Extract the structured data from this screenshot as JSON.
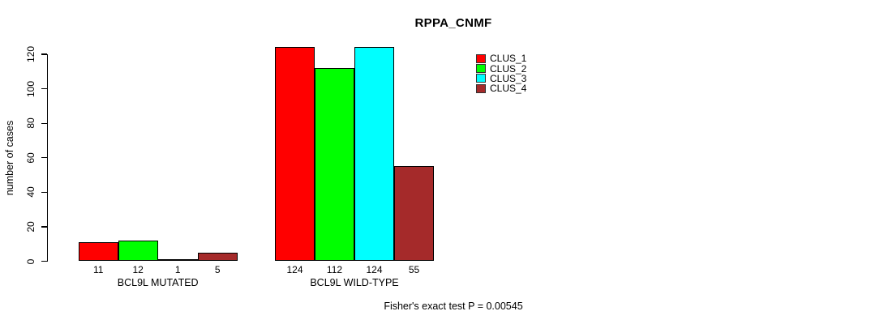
{
  "chart_data": {
    "type": "bar",
    "title": "RPPA_CNMF",
    "ylabel": "number of cases",
    "xlabel": "",
    "ylim": [
      0,
      120
    ],
    "yticks": [
      0,
      20,
      40,
      60,
      80,
      100,
      120
    ],
    "grid": false,
    "legend_position": "top-right",
    "categories": [
      "BCL9L MUTATED",
      "BCL9L WILD-TYPE"
    ],
    "series": [
      {
        "name": "CLUS_1",
        "color": "#FF0000",
        "values": [
          11,
          124
        ]
      },
      {
        "name": "CLUS_2",
        "color": "#00FF00",
        "values": [
          12,
          112
        ]
      },
      {
        "name": "CLUS_3",
        "color": "#00FFFF",
        "values": [
          1,
          124
        ]
      },
      {
        "name": "CLUS_4",
        "color": "#A52A2A",
        "values": [
          5,
          55
        ]
      }
    ],
    "bar_value_labels": true,
    "annotation": "Fisher's exact test P = 0.00545"
  }
}
